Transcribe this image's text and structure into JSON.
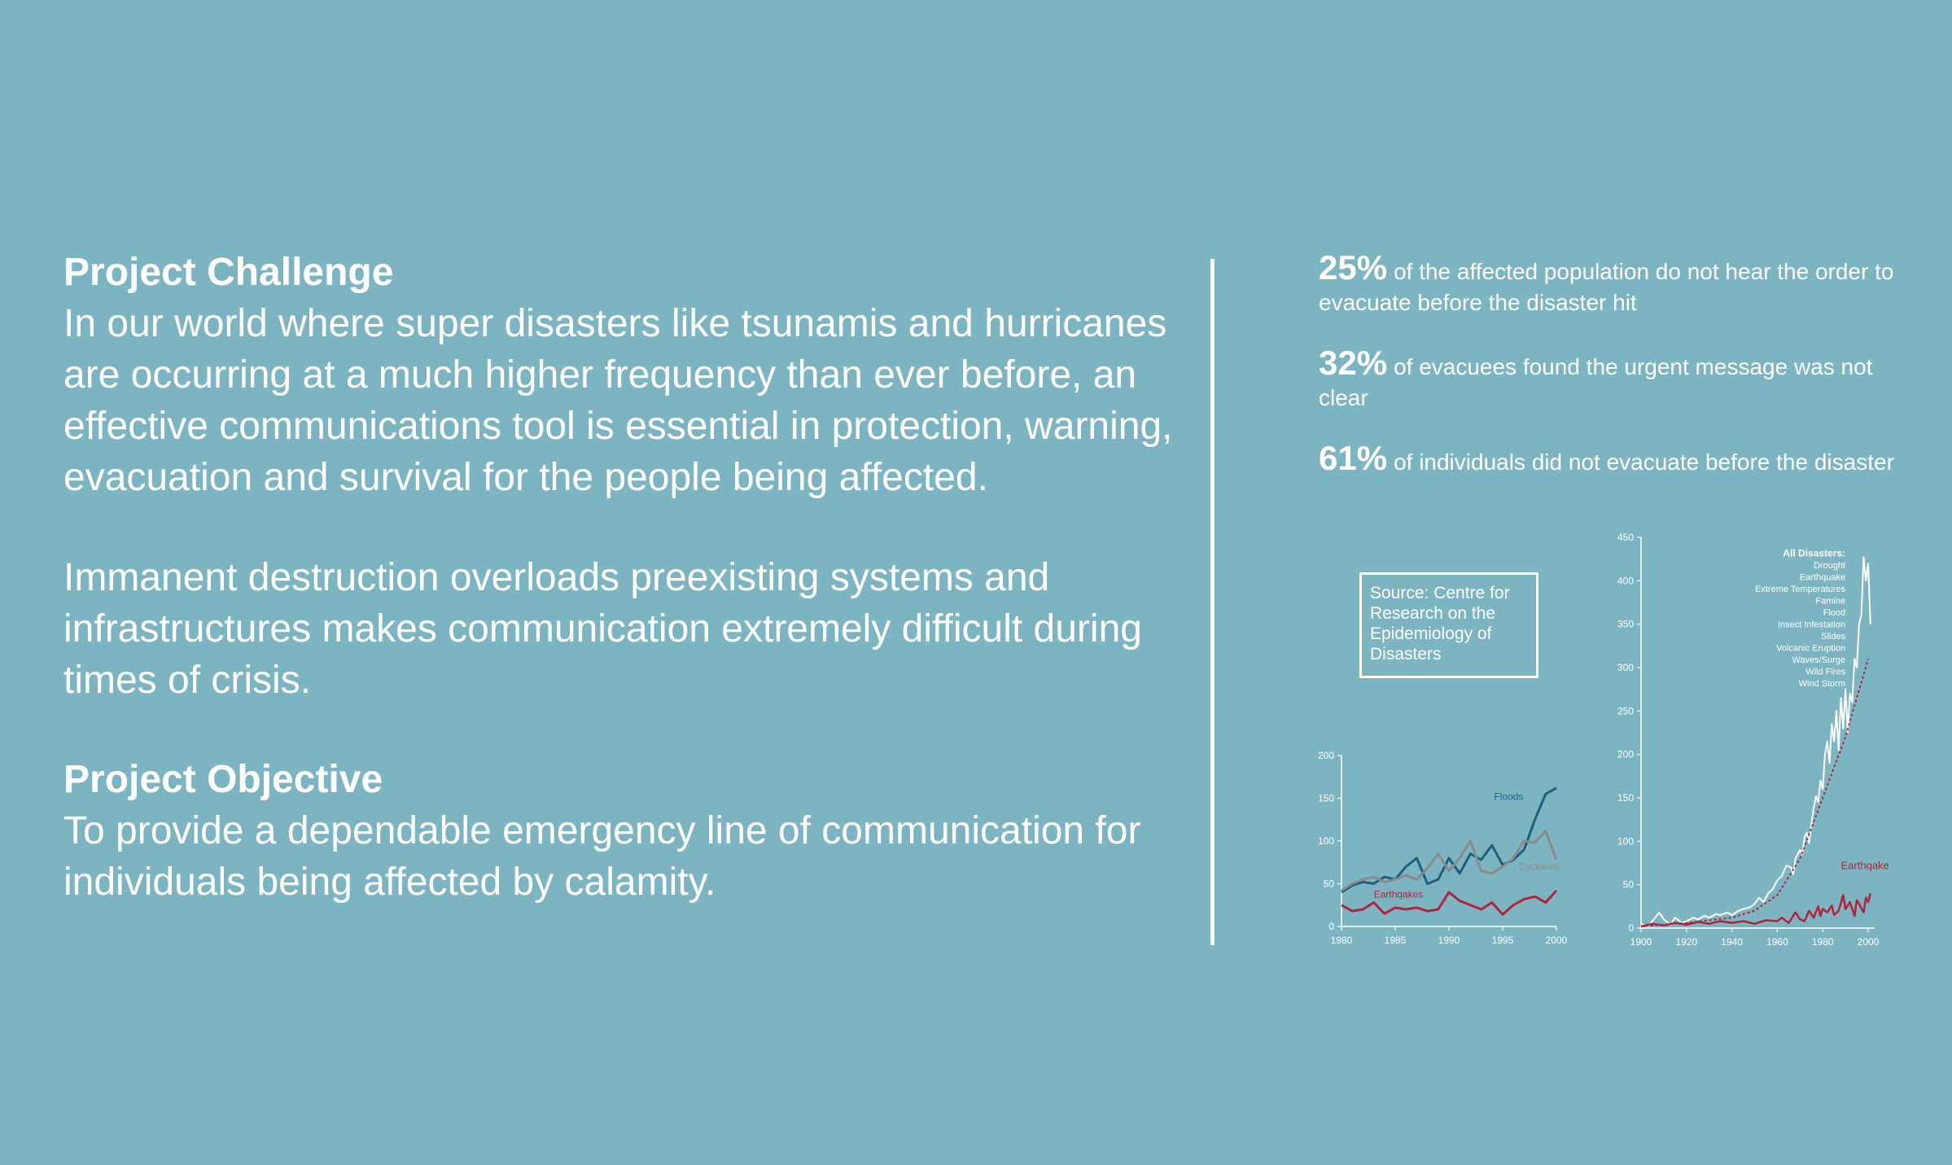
{
  "left": {
    "challenge_heading": "Project Challenge",
    "challenge_text": "In our world where super disasters like tsunamis and hurricanes are occurring at a much higher frequency than ever before, an effective communications tool is essential in protection, warning, evacuation and survival for the people being affected.",
    "destruction_text": "Immanent destruction overloads preexisting systems and infrastructures makes communication extremely difficult during times of crisis.",
    "objective_heading": "Project Objective",
    "objective_text": "To provide a dependable emergency line of communication for individuals being affected by calamity."
  },
  "stats": [
    {
      "pct": "25%",
      "text": "of the affected population do not hear the order to evacuate before the disaster hit"
    },
    {
      "pct": "32%",
      "text": "of evacuees found the urgent message was not clear"
    },
    {
      "pct": "61%",
      "text": "of individuals did not evacuate before the disaster"
    }
  ],
  "source_box": "Source: Centre for Research on the Epidemiology  of Disasters",
  "colors": {
    "background": "#7cb5c1",
    "floods": "#1c5f7f",
    "cyclones": "#8a8a8a",
    "earthquakes": "#b0233a",
    "all_disasters": "#ffffff"
  },
  "chart_data": [
    {
      "type": "line",
      "x": [
        1980,
        1981,
        1982,
        1983,
        1984,
        1985,
        1986,
        1987,
        1988,
        1989,
        1990,
        1991,
        1992,
        1993,
        1994,
        1995,
        1996,
        1997,
        1998,
        1999,
        2000
      ],
      "xticks": [
        "1980",
        "1985",
        "1990",
        "1995",
        "2000"
      ],
      "yticks": [
        "0",
        "50",
        "100",
        "150",
        "200"
      ],
      "ylim": [
        0,
        200
      ],
      "series": [
        {
          "name": "Floods",
          "color": "#1c5f7f",
          "values": [
            40,
            48,
            52,
            50,
            58,
            55,
            70,
            80,
            50,
            55,
            80,
            62,
            85,
            78,
            95,
            72,
            78,
            90,
            125,
            155,
            162
          ]
        },
        {
          "name": "Cyclones",
          "color": "#8a8a8a",
          "values": [
            42,
            50,
            55,
            58,
            52,
            55,
            60,
            55,
            68,
            85,
            65,
            80,
            100,
            65,
            62,
            70,
            80,
            100,
            98,
            112,
            78
          ]
        },
        {
          "name": "Earthqakes",
          "color": "#b0233a",
          "values": [
            25,
            18,
            20,
            28,
            15,
            22,
            20,
            22,
            18,
            20,
            40,
            30,
            25,
            20,
            28,
            14,
            25,
            32,
            35,
            28,
            42
          ]
        }
      ]
    },
    {
      "type": "line",
      "x_range": [
        1900,
        2000
      ],
      "xticks": [
        "1900",
        "1920",
        "1940",
        "1960",
        "1980",
        "2000"
      ],
      "yticks": [
        "0",
        "50",
        "100",
        "150",
        "200",
        "250",
        "300",
        "350",
        "400",
        "450"
      ],
      "ylim": [
        0,
        450
      ],
      "legend_title": "All Disasters:",
      "legend_items": [
        "Drought",
        "Earthquake",
        "Extreme Temperatures",
        "Famine",
        "Flood",
        "Insect Infestation",
        "Slides",
        "Volcanic Eruption",
        "Waves/Surge",
        "Wild Fires",
        "Wind Storm"
      ],
      "series": [
        {
          "name": "All Disasters",
          "color": "#ffffff",
          "points": [
            [
              1900,
              5
            ],
            [
              1903,
              2
            ],
            [
              1905,
              8
            ],
            [
              1908,
              18
            ],
            [
              1910,
              10
            ],
            [
              1913,
              4
            ],
            [
              1915,
              12
            ],
            [
              1918,
              6
            ],
            [
              1920,
              8
            ],
            [
              1923,
              12
            ],
            [
              1925,
              10
            ],
            [
              1928,
              14
            ],
            [
              1930,
              12
            ],
            [
              1933,
              16
            ],
            [
              1935,
              15
            ],
            [
              1938,
              18
            ],
            [
              1940,
              15
            ],
            [
              1943,
              20
            ],
            [
              1945,
              22
            ],
            [
              1948,
              24
            ],
            [
              1950,
              28
            ],
            [
              1952,
              35
            ],
            [
              1954,
              30
            ],
            [
              1956,
              40
            ],
            [
              1958,
              45
            ],
            [
              1960,
              55
            ],
            [
              1962,
              60
            ],
            [
              1964,
              72
            ],
            [
              1966,
              70
            ],
            [
              1967,
              62
            ],
            [
              1968,
              80
            ],
            [
              1970,
              90
            ],
            [
              1971,
              85
            ],
            [
              1972,
              105
            ],
            [
              1973,
              110
            ],
            [
              1974,
              98
            ],
            [
              1975,
              120
            ],
            [
              1976,
              138
            ],
            [
              1977,
              152
            ],
            [
              1978,
              145
            ],
            [
              1979,
              170
            ],
            [
              1980,
              160
            ],
            [
              1981,
              200
            ],
            [
              1982,
              215
            ],
            [
              1983,
              190
            ],
            [
              1984,
              235
            ],
            [
              1985,
              215
            ],
            [
              1986,
              250
            ],
            [
              1987,
              205
            ],
            [
              1988,
              265
            ],
            [
              1989,
              230
            ],
            [
              1990,
              275
            ],
            [
              1991,
              225
            ],
            [
              1992,
              270
            ],
            [
              1993,
              260
            ],
            [
              1994,
              310
            ],
            [
              1995,
              300
            ],
            [
              1996,
              350
            ],
            [
              1997,
              360
            ],
            [
              1998,
              427
            ],
            [
              1999,
              400
            ],
            [
              2000,
              420
            ],
            [
              2001,
              350
            ]
          ]
        },
        {
          "name": "Trend",
          "color": "#b0233a",
          "points": [
            [
              1900,
              2
            ],
            [
              1920,
              6
            ],
            [
              1940,
              12
            ],
            [
              1950,
              20
            ],
            [
              1960,
              38
            ],
            [
              1970,
              80
            ],
            [
              1980,
              150
            ],
            [
              1990,
              220
            ],
            [
              2000,
              310
            ]
          ]
        },
        {
          "name": "Earthqakes",
          "color": "#b0233a",
          "points": [
            [
              1900,
              2
            ],
            [
              1905,
              5
            ],
            [
              1910,
              3
            ],
            [
              1915,
              6
            ],
            [
              1920,
              4
            ],
            [
              1925,
              7
            ],
            [
              1930,
              5
            ],
            [
              1935,
              8
            ],
            [
              1940,
              6
            ],
            [
              1945,
              8
            ],
            [
              1950,
              5
            ],
            [
              1955,
              9
            ],
            [
              1960,
              8
            ],
            [
              1962,
              12
            ],
            [
              1965,
              6
            ],
            [
              1968,
              18
            ],
            [
              1970,
              10
            ],
            [
              1972,
              8
            ],
            [
              1974,
              20
            ],
            [
              1976,
              12
            ],
            [
              1978,
              25
            ],
            [
              1979,
              14
            ],
            [
              1980,
              22
            ],
            [
              1982,
              18
            ],
            [
              1984,
              26
            ],
            [
              1985,
              15
            ],
            [
              1987,
              20
            ],
            [
              1989,
              38
            ],
            [
              1990,
              22
            ],
            [
              1992,
              30
            ],
            [
              1994,
              14
            ],
            [
              1995,
              32
            ],
            [
              1996,
              28
            ],
            [
              1998,
              18
            ],
            [
              1999,
              35
            ],
            [
              2000,
              30
            ],
            [
              2001,
              40
            ]
          ]
        }
      ]
    }
  ]
}
